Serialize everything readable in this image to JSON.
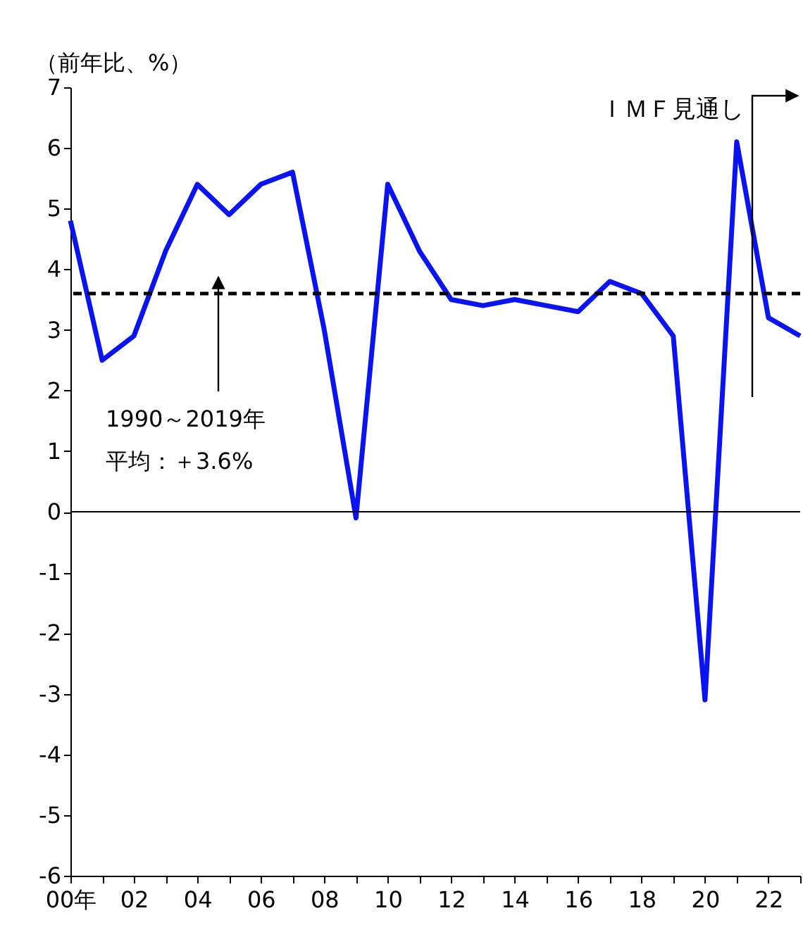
{
  "chart_data": {
    "type": "line",
    "ylabel": "（前年比、%）",
    "categories": [
      "00年",
      null,
      "02",
      null,
      "04",
      null,
      "06",
      null,
      "08",
      null,
      "10",
      null,
      "12",
      null,
      "14",
      null,
      "16",
      null,
      "18",
      null,
      "20",
      null,
      "22",
      null
    ],
    "series": [
      {
        "color": "#0a14f0",
        "values": [
          4.8,
          2.5,
          2.9,
          4.3,
          5.4,
          4.9,
          5.4,
          5.6,
          3.0,
          -0.1,
          5.4,
          4.3,
          3.5,
          3.4,
          3.5,
          3.4,
          3.3,
          3.8,
          3.6,
          2.9,
          -3.1,
          6.1,
          3.2,
          2.9
        ]
      }
    ],
    "ylim": [
      -6,
      7
    ],
    "yticks": [
      -6,
      -5,
      -4,
      -3,
      -2,
      -1,
      0,
      1,
      2,
      3,
      4,
      5,
      6,
      7
    ],
    "ref_lines": [
      {
        "axis": "y",
        "value": 0,
        "color": "#000000",
        "line_style": "solid"
      },
      {
        "axis": "y",
        "value": 3.6,
        "label": "1990～2019年",
        "color": "#000000",
        "line_style": "dashed"
      }
    ],
    "annotations": [
      "ＩＭＦ見通し",
      "平均：＋3.6%"
    ],
    "grid": false,
    "marker": "none",
    "line_style": "solid"
  }
}
